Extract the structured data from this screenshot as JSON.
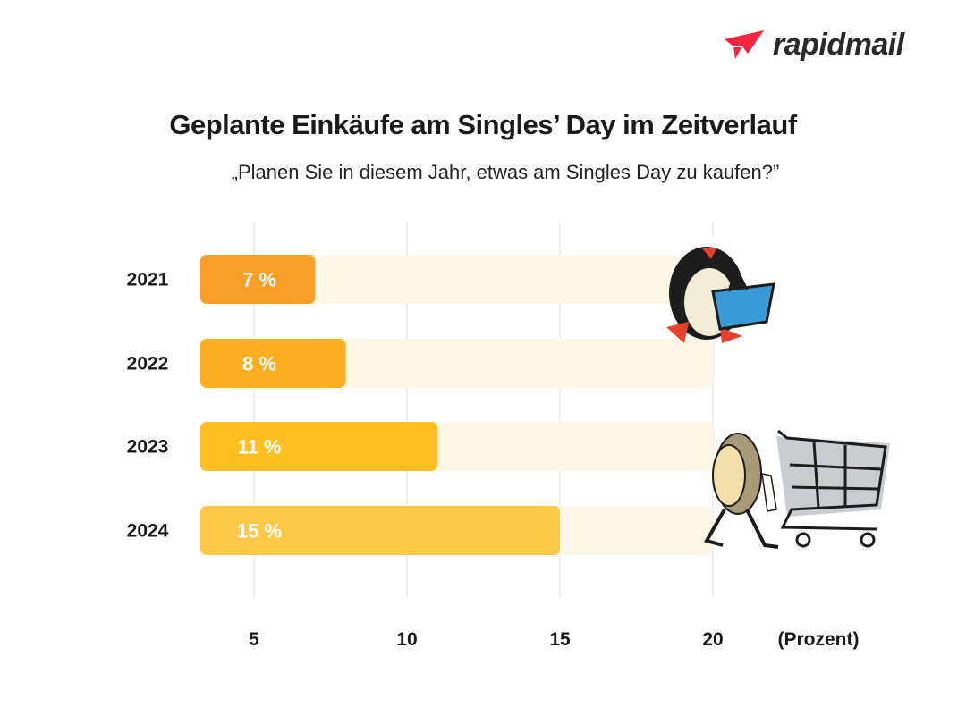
{
  "logo": {
    "text": "rapidmail",
    "color": "#f4263e"
  },
  "chart_data": {
    "type": "bar",
    "orientation": "horizontal",
    "title": "Geplante Einkäufe am Singles’ Day im Zeitverlauf",
    "subtitle": "„Planen Sie in diesem Jahr, etwas am Singles Day zu kaufen?”",
    "xlabel": "(Prozent)",
    "categories": [
      "2021",
      "2022",
      "2023",
      "2024"
    ],
    "values": [
      7,
      8,
      11,
      15
    ],
    "data_labels": [
      "7 %",
      "8 %",
      "11 %",
      "15 %"
    ],
    "bar_colors": [
      "#f99f27",
      "#fcaf22",
      "#ffbf20",
      "#ffc846"
    ],
    "track_color": "#fef7e6",
    "xticks": [
      "5",
      "10",
      "15",
      "20"
    ],
    "xlim": [
      5,
      20
    ],
    "grid": true
  }
}
